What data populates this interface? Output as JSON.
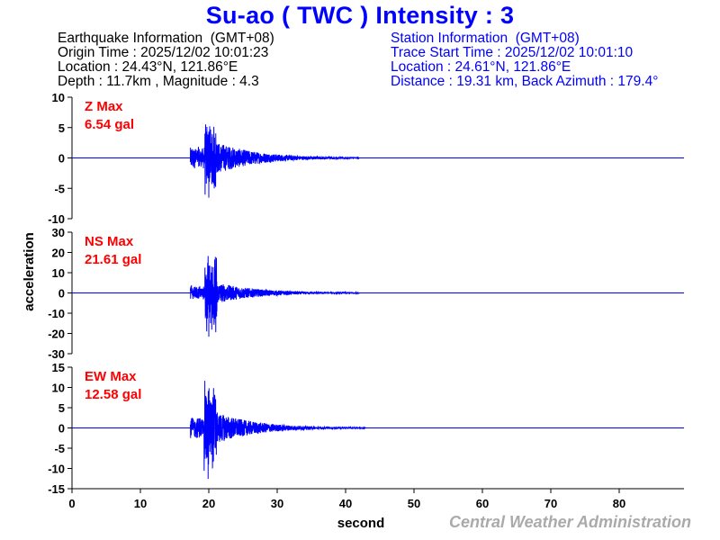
{
  "title": "Su-ao ( TWC ) Intensity : 3",
  "earthquake": {
    "header": "Earthquake Information  (GMT+08)",
    "origin_time": "Origin Time : 2025/12/02 10:01:23",
    "location": "Location : 24.43°N, 121.86°E",
    "depth_magnitude": "Depth : 11.7km , Magnitude : 4.3"
  },
  "station": {
    "header": "Station Information  (GMT+08)",
    "trace_start": "Trace Start Time : 2025/12/02 10:01:10",
    "location": "Location : 24.61°N, 121.86°E",
    "distance": "Distance : 19.31 km, Back Azimuth : 179.4°"
  },
  "credit": "Central Weather Administration",
  "colors": {
    "title": "#0000ff",
    "trace": "#0000ff",
    "max_label": "#ff0000",
    "credit": "#aaaaaa"
  },
  "chart_data": {
    "type": "line",
    "xlabel": "second",
    "ylabel": "acceleration",
    "xlim": [
      0,
      89.5
    ],
    "xticks": [
      0,
      10,
      20,
      30,
      40,
      50,
      60,
      70,
      80
    ],
    "panels": [
      {
        "component": "Z",
        "label": "Z Max",
        "max": "6.54 gal",
        "ylim": [
          -10,
          10
        ],
        "yticks": [
          10,
          5,
          0,
          -5,
          -10
        ],
        "onset": 17.3,
        "signal_end": 42,
        "peak_time": 20.0,
        "peak_pos": 5.2,
        "peak_neg": -6.54,
        "coda_amp": 2.0
      },
      {
        "component": "NS",
        "label": "NS Max",
        "max": "21.61 gal",
        "ylim": [
          -30,
          30
        ],
        "yticks": [
          30,
          20,
          10,
          0,
          -10,
          -20,
          -30
        ],
        "onset": 17.3,
        "signal_end": 42,
        "peak_time": 20.0,
        "peak_pos": 13.5,
        "peak_neg": -21.61,
        "coda_amp": 4.0
      },
      {
        "component": "EW",
        "label": "EW Max",
        "max": "12.58 gal",
        "ylim": [
          -15,
          15
        ],
        "yticks": [
          15,
          10,
          5,
          0,
          -5,
          -10,
          -15
        ],
        "onset": 17.3,
        "signal_end": 43,
        "peak_time": 19.9,
        "peak_pos": 9.8,
        "peak_neg": -12.58,
        "coda_amp": 3.0
      }
    ]
  }
}
